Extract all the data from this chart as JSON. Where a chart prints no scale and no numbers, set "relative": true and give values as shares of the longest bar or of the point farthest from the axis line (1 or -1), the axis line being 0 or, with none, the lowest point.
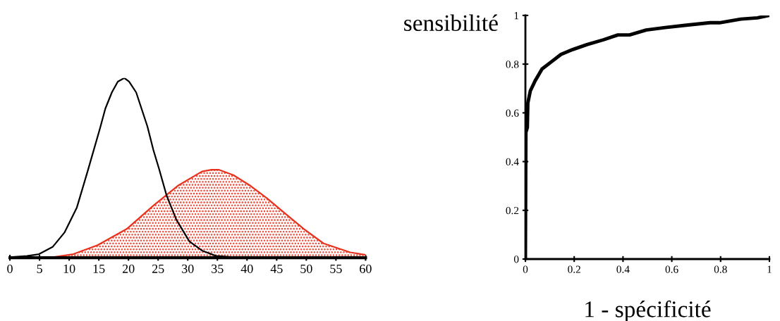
{
  "chart_data": [
    {
      "type": "line",
      "relative": true,
      "xlim": [
        0,
        60
      ],
      "xticks": [
        0,
        5,
        10,
        15,
        20,
        25,
        30,
        35,
        40,
        45,
        50,
        55,
        60
      ],
      "series": [
        {
          "type": "area",
          "color": "#e8321e",
          "x": [
            0,
            6.6,
            10.7,
            14.8,
            19.7,
            24.2,
            28.3,
            32.4,
            34.0,
            35.2,
            37.7,
            40.6,
            43.4,
            46.3,
            49.6,
            52.9,
            57.4,
            60
          ],
          "values": [
            0,
            0,
            0.02,
            0.07,
            0.16,
            0.29,
            0.4,
            0.48,
            0.49,
            0.49,
            0.46,
            0.4,
            0.33,
            0.25,
            0.16,
            0.08,
            0.03,
            0.016
          ]
        },
        {
          "type": "line",
          "color": "#000000",
          "x": [
            0,
            2.9,
            4.9,
            7.2,
            9.2,
            11.3,
            13.1,
            15.2,
            16.1,
            17.2,
            18.2,
            19.3,
            20.1,
            21.3,
            23.2,
            24.2,
            25.2,
            26.4,
            28.1,
            30.3,
            32.4,
            34.8,
            37.7,
            43.4,
            60
          ],
          "values": [
            0.003,
            0.01,
            0.02,
            0.06,
            0.14,
            0.28,
            0.48,
            0.72,
            0.83,
            0.92,
            0.98,
            1,
            0.98,
            0.92,
            0.73,
            0.6,
            0.49,
            0.35,
            0.21,
            0.09,
            0.04,
            0.01,
            0.003,
            0,
            0
          ]
        }
      ]
    },
    {
      "type": "line",
      "xlabel": "1 - spécificité",
      "ylabel": "sensibilité",
      "xlim": [
        0,
        1
      ],
      "ylim": [
        0,
        1
      ],
      "xticks": [
        0,
        0.2,
        0.4,
        0.6,
        0.8,
        1
      ],
      "yticks": [
        0,
        0.2,
        0.4,
        0.6,
        0.8,
        1
      ],
      "series": [
        {
          "color": "#000000",
          "x": [
            0,
            0.002,
            0.008,
            0.01,
            0.02,
            0.039,
            0.068,
            0.107,
            0.146,
            0.194,
            0.252,
            0.32,
            0.379,
            0.427,
            0.495,
            0.573,
            0.66,
            0.757,
            0.796,
            0.883,
            0.951,
            1
          ],
          "values": [
            0,
            0.52,
            0.54,
            0.64,
            0.69,
            0.73,
            0.78,
            0.81,
            0.84,
            0.86,
            0.88,
            0.9,
            0.92,
            0.92,
            0.94,
            0.95,
            0.96,
            0.97,
            0.97,
            0.985,
            0.99,
            1
          ]
        }
      ]
    }
  ]
}
